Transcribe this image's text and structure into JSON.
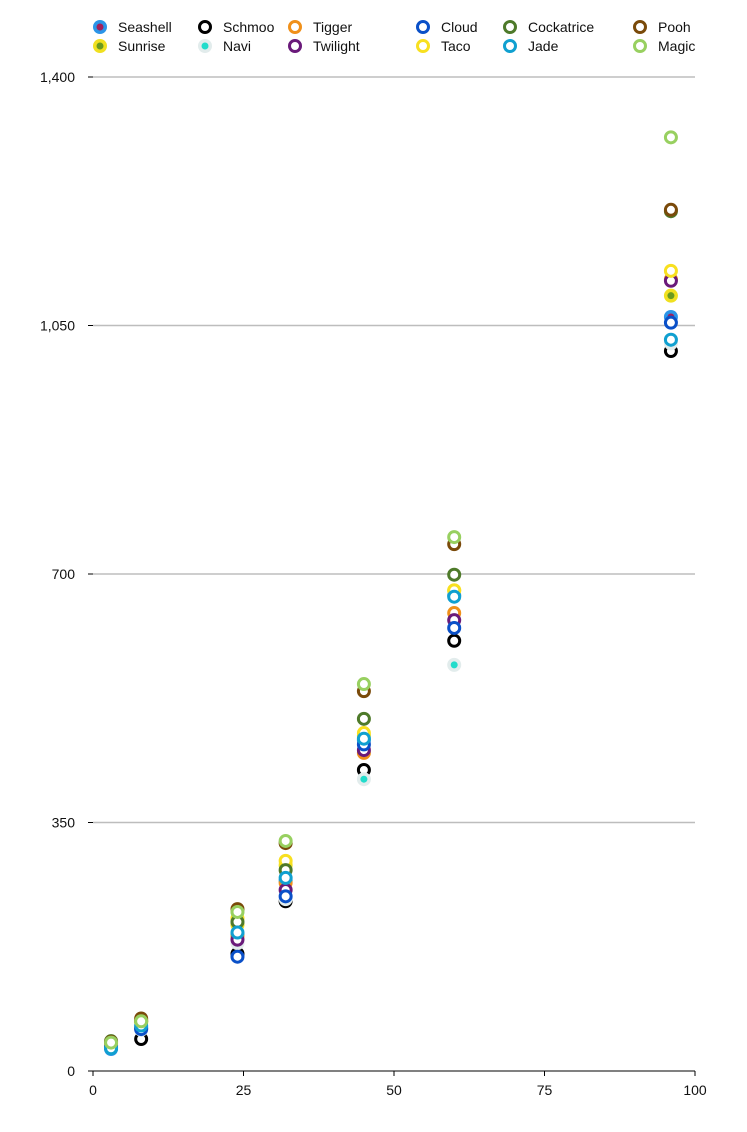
{
  "chart_data": {
    "type": "scatter",
    "title": "",
    "xlabel": "",
    "ylabel": "",
    "xlim": [
      0,
      100
    ],
    "ylim": [
      0,
      1400
    ],
    "xticks": [
      0,
      25,
      50,
      75,
      100
    ],
    "yticks": [
      0,
      350,
      700,
      1050,
      1400
    ],
    "xtick_labels": [
      "0",
      "25",
      "50",
      "75",
      "100"
    ],
    "ytick_labels": [
      "0",
      "350",
      "700",
      "1,050",
      "1,400"
    ],
    "grid": "horizontal",
    "legend_position": "top",
    "x": [
      3,
      8,
      24,
      32,
      45,
      60,
      96
    ],
    "series": [
      {
        "name": "Seashell",
        "style": "dot",
        "color": "#2b95e8",
        "inner": "#a3205a",
        "values": [
          31,
          62,
          192,
          268,
          466,
          670,
          1062
        ]
      },
      {
        "name": "Sunrise",
        "style": "dot",
        "color": "#f0e020",
        "inner": "#6a9a20",
        "values": [
          38,
          68,
          206,
          290,
          472,
          677,
          1092
        ]
      },
      {
        "name": "Schmoo",
        "style": "ring",
        "color": "#000000",
        "values": [
          33,
          45,
          165,
          239,
          424,
          606,
          1014
        ]
      },
      {
        "name": "Navi",
        "style": "dot",
        "color": "#e2ecec",
        "inner": "#22dccb",
        "values": [
          34,
          58,
          180,
          242,
          411,
          572,
          1025
        ]
      },
      {
        "name": "Tigger",
        "style": "ring",
        "color": "#f0901a",
        "values": [
          40,
          72,
          190,
          265,
          448,
          645,
          1115
        ]
      },
      {
        "name": "Twilight",
        "style": "ring",
        "color": "#6a1a7a",
        "values": [
          36,
          60,
          185,
          255,
          452,
          635,
          1113
        ]
      },
      {
        "name": "Cloud",
        "style": "ring",
        "color": "#0a50c8",
        "values": [
          35,
          59,
          161,
          246,
          460,
          624,
          1054
        ]
      },
      {
        "name": "Taco",
        "style": "ring",
        "color": "#f8e020",
        "values": [
          39,
          70,
          215,
          296,
          476,
          677,
          1127
        ]
      },
      {
        "name": "Cockatrice",
        "style": "ring",
        "color": "#4e7a2a",
        "values": [
          42,
          70,
          210,
          283,
          496,
          699,
          1211
        ]
      },
      {
        "name": "Jade",
        "style": "ring",
        "color": "#10a0d0",
        "values": [
          32,
          64,
          195,
          272,
          468,
          668,
          1030
        ]
      },
      {
        "name": "Pooh",
        "style": "ring",
        "color": "#7a4a0a",
        "values": [
          41,
          74,
          228,
          321,
          535,
          742,
          1213
        ]
      },
      {
        "name": "Magic",
        "style": "ring",
        "color": "#98d060",
        "values": [
          40,
          70,
          224,
          324,
          545,
          752,
          1315
        ]
      }
    ]
  }
}
